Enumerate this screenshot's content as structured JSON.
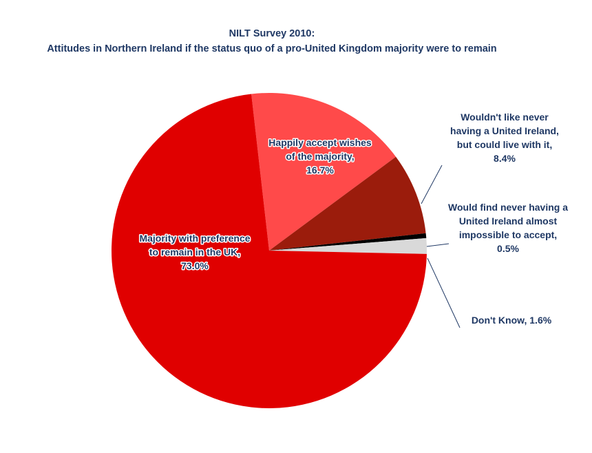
{
  "chart_data": {
    "type": "pie",
    "title": "NILT Survey 2010:",
    "subtitle": "Attitudes in Northern Ireland if the status quo of a pro-United Kingdom majority were to remain",
    "slices": [
      {
        "label": "Happily accept wishes of the majority, 16.7%",
        "value": 16.7,
        "color": "#ff4a4a"
      },
      {
        "label": "Wouldn't like never having a United Ireland, but could live with it, 8.4%",
        "value": 8.4,
        "color": "#9b1c0c"
      },
      {
        "label": "Would find never having a United Ireland almost impossible to accept, 0.5%",
        "value": 0.5,
        "color": "#000000"
      },
      {
        "label": "Don't Know, 1.6%",
        "value": 1.6,
        "color": "#d9d9d9"
      },
      {
        "label": "Majority with preference to remain in the UK, 73.0%",
        "value": 73.0,
        "color": "#e00000"
      }
    ],
    "legend": "none"
  }
}
